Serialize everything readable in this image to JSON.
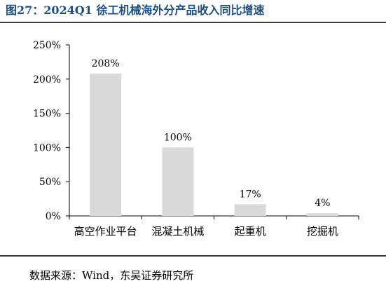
{
  "header": {
    "title": "图27：2024Q1 徐工机械海外分产品收入同比增速"
  },
  "footer": {
    "source": "数据来源：Wind，东吴证券研究所"
  },
  "colors": {
    "title": "#1f4e7a",
    "bar": "#d9d9d9",
    "rule": "#3c3c3c"
  },
  "chart_data": {
    "type": "bar",
    "title": "",
    "xlabel": "",
    "ylabel": "",
    "categories": [
      "高空作业平台",
      "混凝土机械",
      "起重机",
      "挖掘机"
    ],
    "values": [
      208,
      100,
      17,
      4
    ],
    "data_labels": [
      "208%",
      "100%",
      "17%",
      "4%"
    ],
    "ylim": [
      0,
      250
    ],
    "yticks": [
      0,
      50,
      100,
      150,
      200,
      250
    ],
    "ytick_labels": [
      "0%",
      "50%",
      "100%",
      "150%",
      "200%",
      "250%"
    ],
    "grid": false,
    "legend": "none"
  }
}
